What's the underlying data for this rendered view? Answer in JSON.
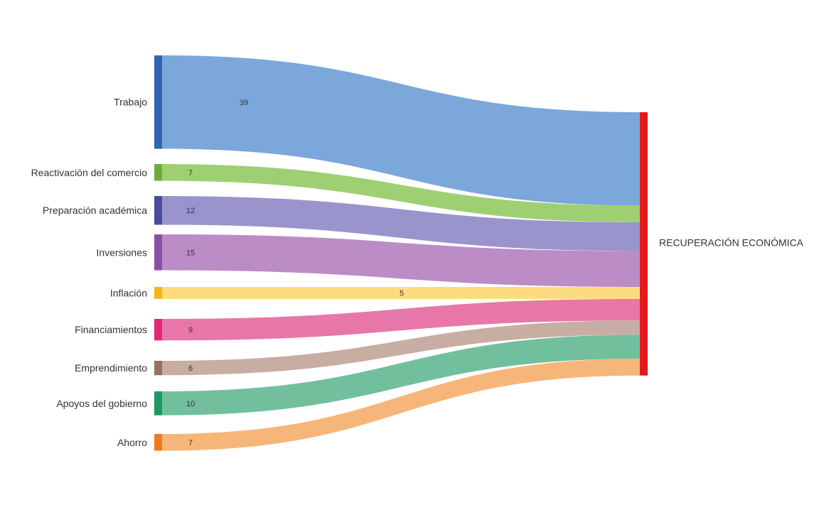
{
  "chart_data": {
    "type": "sankey",
    "title": "",
    "target": {
      "label": "RECUPERACIÓN ECONÓMICA",
      "color": "#e31a1c"
    },
    "links": [
      {
        "source": "Trabajo",
        "value": 39,
        "node_color": "#2f64b4",
        "flow_color": "#7ba7db"
      },
      {
        "source": "Reactivación del comercio",
        "value": 7,
        "node_color": "#6aaf3a",
        "flow_color": "#9fcf73"
      },
      {
        "source": "Preparación académica",
        "value": 12,
        "node_color": "#4b4ba0",
        "flow_color": "#9a94cc"
      },
      {
        "source": "Inversiones",
        "value": 15,
        "node_color": "#8a4fa5",
        "flow_color": "#bb8cc6"
      },
      {
        "source": "Inflación",
        "value": 5,
        "node_color": "#f5b814",
        "flow_color": "#fddc7f"
      },
      {
        "source": "Financiamientos",
        "value": 9,
        "node_color": "#e0287a",
        "flow_color": "#e877a9"
      },
      {
        "source": "Emprendimiento",
        "value": 6,
        "node_color": "#9a6f5d",
        "flow_color": "#c8ada3"
      },
      {
        "source": "Apoyos del gobierno",
        "value": 10,
        "node_color": "#1a9a62",
        "flow_color": "#72bf9d"
      },
      {
        "source": "Ahorro",
        "value": 7,
        "node_color": "#f07b1a",
        "flow_color": "#f7b679"
      }
    ]
  }
}
